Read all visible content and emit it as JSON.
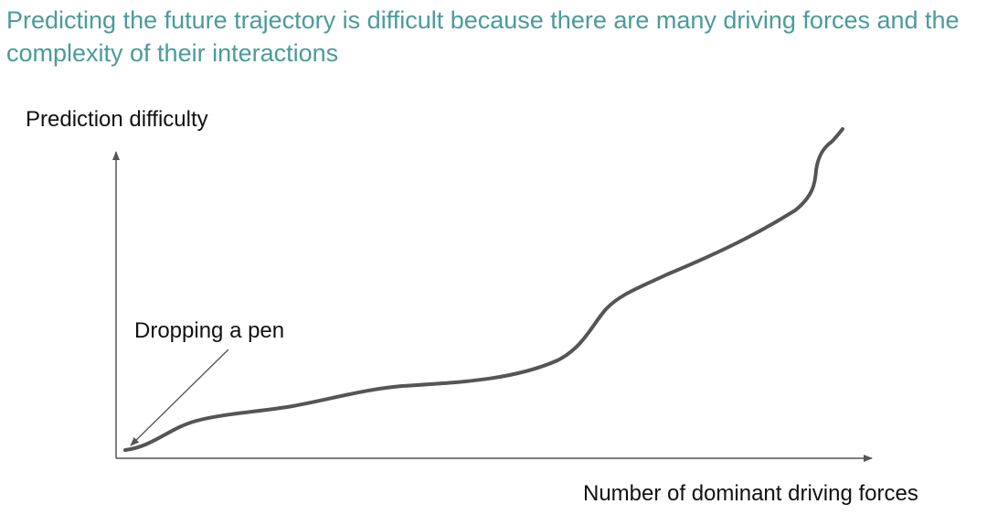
{
  "slide": {
    "title": "Predicting the future trajectory is difficult because there are many driving forces and the complexity of their interactions"
  },
  "diagram": {
    "y_axis_label": "Prediction difficulty",
    "x_axis_label": "Number of dominant driving forces",
    "annotation": "Dropping a pen",
    "title_color": "#4a9b9b",
    "line_color": "#555555"
  }
}
